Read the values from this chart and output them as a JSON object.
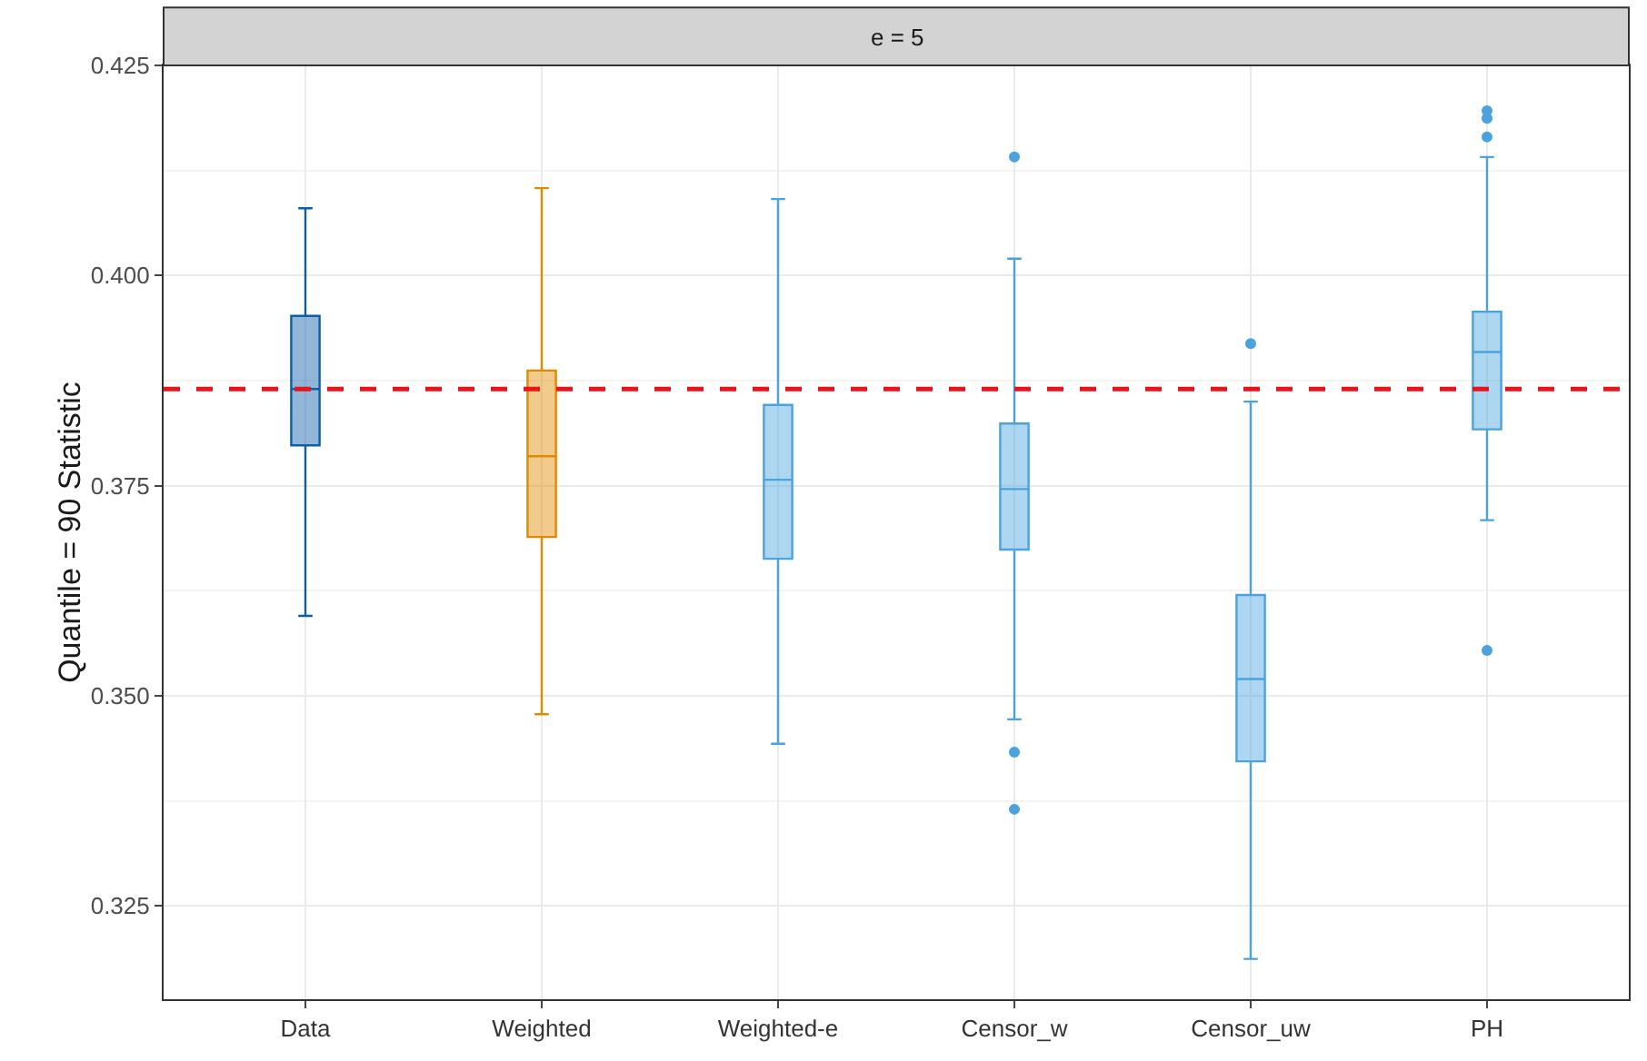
{
  "chart_data": {
    "type": "box",
    "title": "e = 5",
    "ylabel": "Quantile = 90 Statistic",
    "categories": [
      "Data",
      "Weighted",
      "Weighted-e",
      "Censor_w",
      "Censor_uw",
      "PH"
    ],
    "colors": [
      "#0b5ea8",
      "#e08a00",
      "#4aa3df",
      "#4aa3df",
      "#4aa3df",
      "#4aa3df"
    ],
    "boxes": [
      {
        "low": 0.3595,
        "q1": 0.3798,
        "median": 0.3865,
        "q3": 0.3952,
        "high": 0.408
      },
      {
        "low": 0.3478,
        "q1": 0.3689,
        "median": 0.3785,
        "q3": 0.3887,
        "high": 0.4104
      },
      {
        "low": 0.3443,
        "q1": 0.3663,
        "median": 0.3757,
        "q3": 0.3846,
        "high": 0.4091
      },
      {
        "low": 0.3472,
        "q1": 0.3674,
        "median": 0.3746,
        "q3": 0.3824,
        "high": 0.402,
        "outliers": [
          0.4141,
          0.3433,
          0.3365
        ]
      },
      {
        "low": 0.3187,
        "q1": 0.3422,
        "median": 0.352,
        "q3": 0.362,
        "high": 0.385,
        "outliers": [
          0.3919
        ]
      },
      {
        "low": 0.3709,
        "q1": 0.3817,
        "median": 0.3909,
        "q3": 0.3957,
        "high": 0.4141,
        "outliers": [
          0.4196,
          0.4187,
          0.4165,
          0.3554
        ]
      }
    ],
    "ylim": [
      0.3139,
      0.425
    ],
    "yticks": [
      {
        "value": 0.325,
        "label": "0.325"
      },
      {
        "value": 0.35,
        "label": "0.350"
      },
      {
        "value": 0.375,
        "label": "0.375"
      },
      {
        "value": 0.4,
        "label": "0.400"
      },
      {
        "value": 0.425,
        "label": "0.425"
      }
    ],
    "ref_lines": [
      {
        "axis": "y",
        "value": 0.3865,
        "color": "#e8141b",
        "line_style": "dashed"
      }
    ],
    "grid": true
  }
}
